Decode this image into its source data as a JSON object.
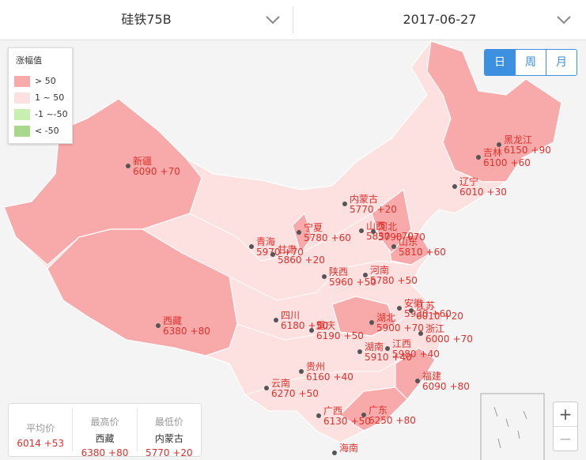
{
  "header": {
    "product": "硅铁75B",
    "date": "2017-06-27"
  },
  "legend": {
    "title": "涨幅值",
    "items": [
      {
        "label": "> 50",
        "color": "#f8aaaa"
      },
      {
        "label": "1 ~ 50",
        "color": "#fde0e0"
      },
      {
        "label": "-1 ~-50",
        "color": "#c8efb0"
      },
      {
        "label": "< -50",
        "color": "#a8d88a"
      }
    ]
  },
  "tabs": [
    "日",
    "周",
    "月"
  ],
  "active_tab": 0,
  "provinces": [
    {
      "name": "黑龙江",
      "price": 6150,
      "change": "+90"
    },
    {
      "name": "吉林",
      "price": 6100,
      "change": "+60"
    },
    {
      "name": "辽宁",
      "price": 6010,
      "change": "+30"
    },
    {
      "name": "内蒙古",
      "price": 5770,
      "change": "+20"
    },
    {
      "name": "新疆",
      "price": 6090,
      "change": "+70"
    },
    {
      "name": "宁夏",
      "price": 5780,
      "change": "+60"
    },
    {
      "name": "青海",
      "price": 5970,
      "change": "+70"
    },
    {
      "name": "甘肃",
      "price": 5860,
      "change": "+20"
    },
    {
      "name": "山西",
      "price": 5830,
      "change": "+70"
    },
    {
      "name": "河北",
      "price": 5790,
      "change": "+70"
    },
    {
      "name": "山东",
      "price": 5810,
      "change": "+60"
    },
    {
      "name": "陕西",
      "price": 5960,
      "change": "+50"
    },
    {
      "name": "河南",
      "price": 5780,
      "change": "+50"
    },
    {
      "name": "西藏",
      "price": 6380,
      "change": "+80"
    },
    {
      "name": "四川",
      "price": 6180,
      "change": "+50"
    },
    {
      "name": "重庆",
      "price": 6190,
      "change": "+50"
    },
    {
      "name": "湖北",
      "price": 5900,
      "change": "+70"
    },
    {
      "name": "安徽",
      "price": 5930,
      "change": "+60"
    },
    {
      "name": "江苏",
      "price": 6010,
      "change": "+20"
    },
    {
      "name": "浙江",
      "price": 6000,
      "change": "+70"
    },
    {
      "name": "江西",
      "price": 5980,
      "change": "+40"
    },
    {
      "name": "湖南",
      "price": 5910,
      "change": "+40"
    },
    {
      "name": "贵州",
      "price": 6160,
      "change": "+40"
    },
    {
      "name": "云南",
      "price": 6270,
      "change": "+50"
    },
    {
      "name": "福建",
      "price": 6090,
      "change": "+80"
    },
    {
      "name": "广西",
      "price": 6130,
      "change": "+50"
    },
    {
      "name": "广东",
      "price": 6250,
      "change": "+80"
    },
    {
      "name": "海南"
    }
  ],
  "summary": [
    {
      "label": "平均价",
      "value": 6014,
      "change": "+53"
    },
    {
      "label": "最高价",
      "region": "西藏",
      "value": 6380,
      "change": "+80"
    },
    {
      "label": "最低价",
      "region": "内蒙古",
      "value": 5770,
      "change": "+20"
    }
  ],
  "zoom": [
    "+",
    "−"
  ]
}
